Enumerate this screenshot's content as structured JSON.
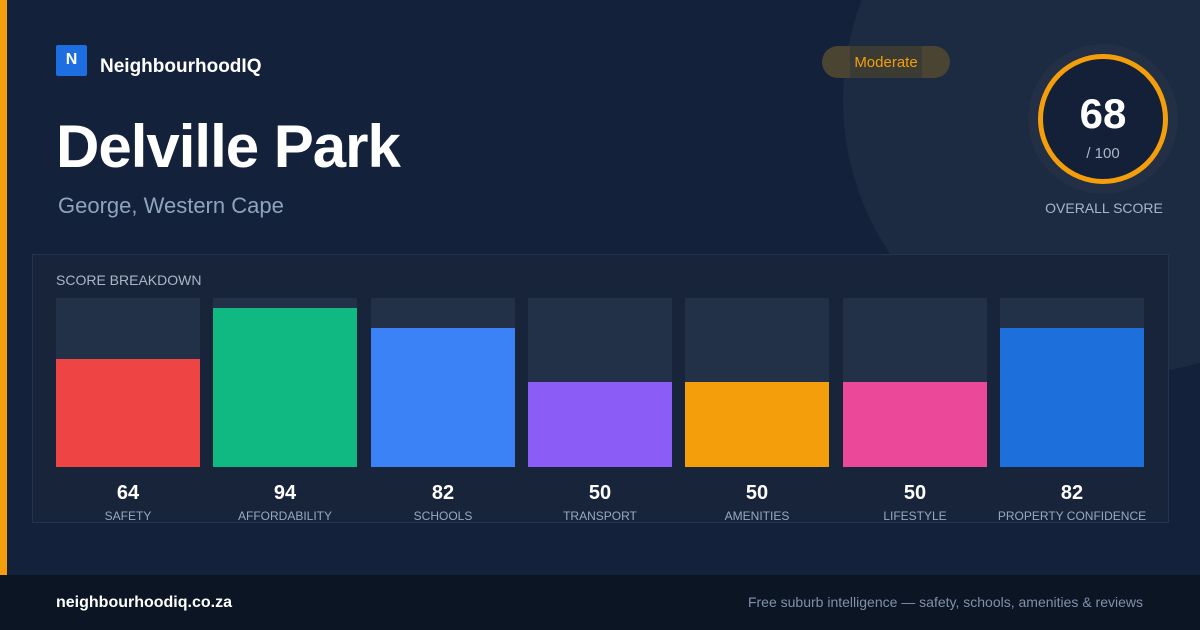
{
  "brand": {
    "logo_letter": "N",
    "name": "NeighbourhoodIQ"
  },
  "suburb": {
    "name": "Delville Park",
    "location": "George, Western Cape"
  },
  "rating": {
    "label": "Moderate",
    "color": "#f59e0b"
  },
  "overall_score": {
    "value": "68",
    "max": "/ 100",
    "label": "OVERALL SCORE",
    "fraction": 0.68
  },
  "breakdown": {
    "title": "SCORE BREAKDOWN",
    "bars": [
      {
        "label": "SAFETY",
        "value": "64",
        "score": 64,
        "color": "#ef4444"
      },
      {
        "label": "AFFORDABILITY",
        "value": "94",
        "score": 94,
        "color": "#10b981"
      },
      {
        "label": "SCHOOLS",
        "value": "82",
        "score": 82,
        "color": "#3b82f6"
      },
      {
        "label": "TRANSPORT",
        "value": "50",
        "score": 50,
        "color": "#8b5cf6"
      },
      {
        "label": "AMENITIES",
        "value": "50",
        "score": 50,
        "color": "#f59e0b"
      },
      {
        "label": "LIFESTYLE",
        "value": "50",
        "score": 50,
        "color": "#ec4899"
      },
      {
        "label": "PROPERTY CONFIDENCE",
        "value": "82",
        "score": 82,
        "color": "#1d6fdc"
      }
    ]
  },
  "footer": {
    "url": "neighbourhoodiq.co.za",
    "tagline": "Free suburb intelligence — safety, schools, amenities & reviews"
  }
}
